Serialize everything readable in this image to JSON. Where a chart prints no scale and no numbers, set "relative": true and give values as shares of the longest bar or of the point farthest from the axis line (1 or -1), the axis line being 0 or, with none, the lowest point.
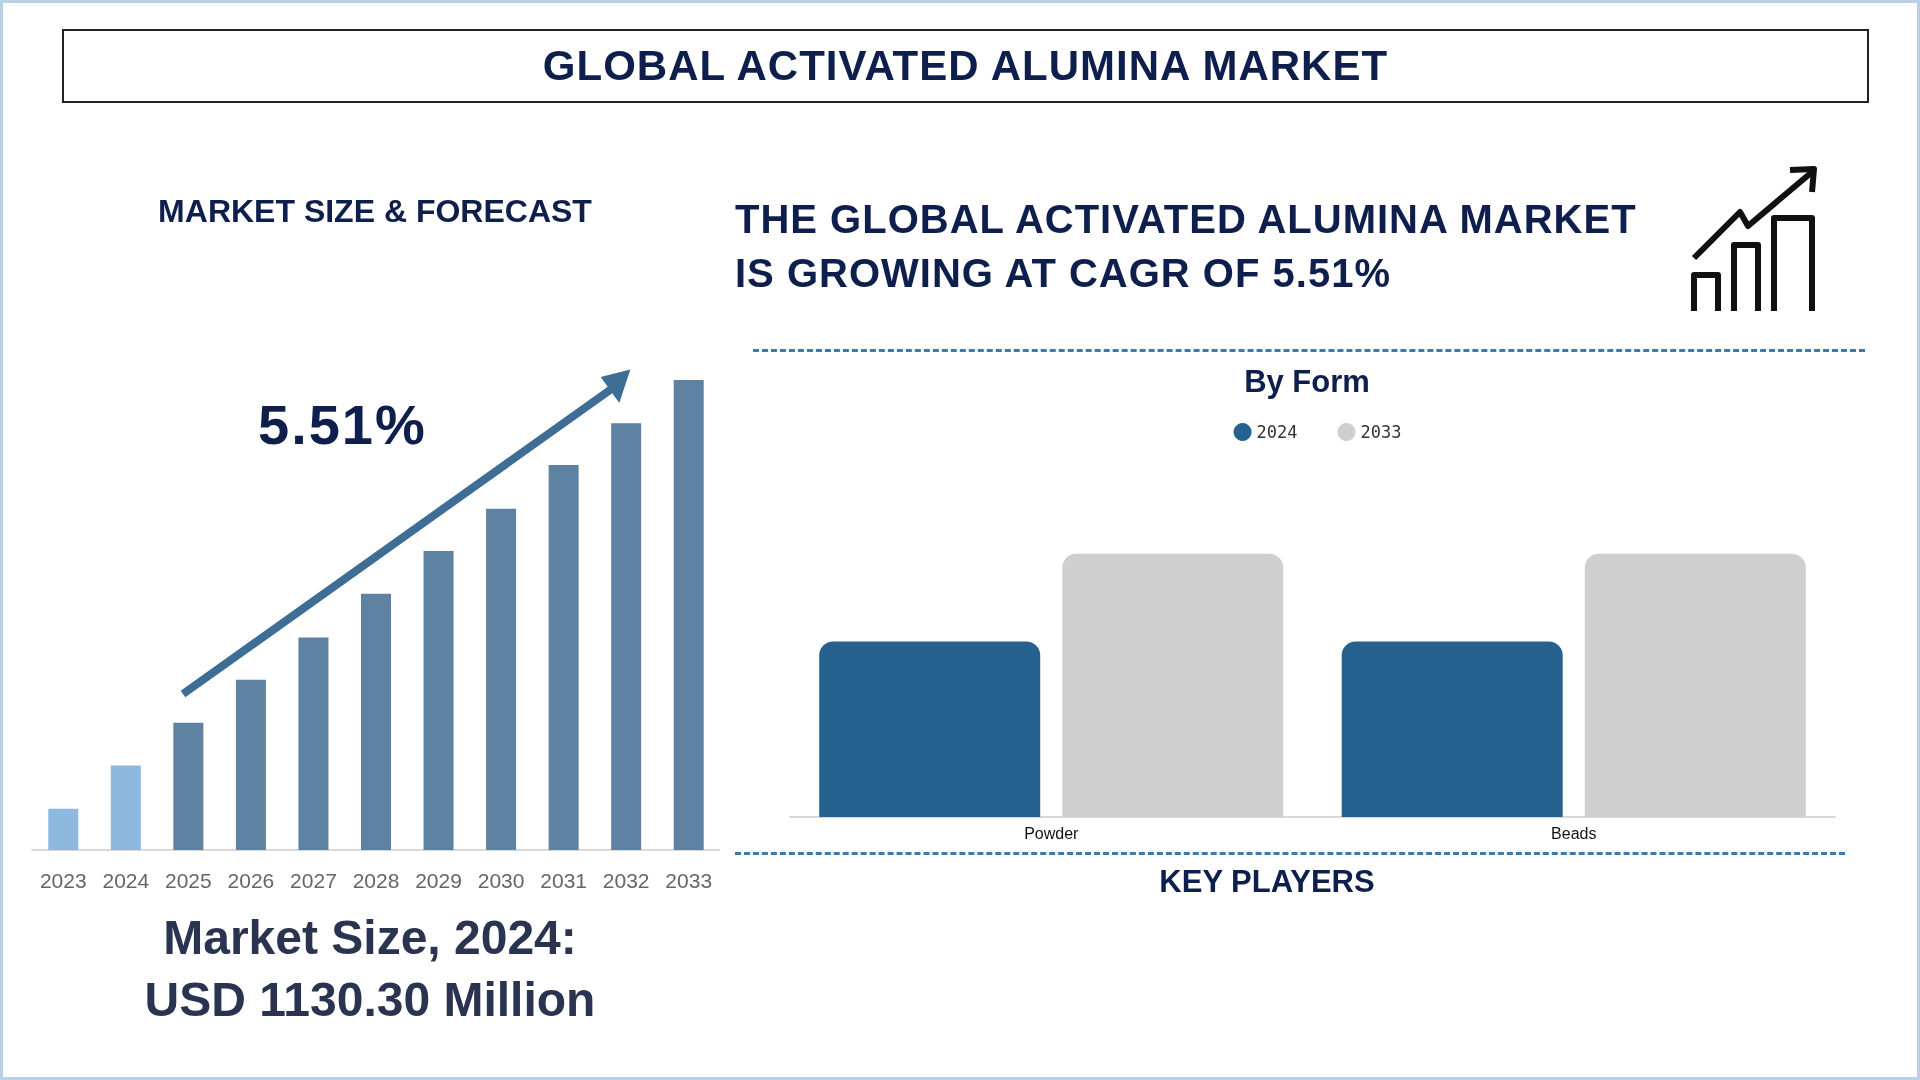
{
  "chart_data": [
    {
      "type": "bar",
      "title": "GLOBAL ACTIVATED ALUMINA MARKET",
      "subtitle": "MARKET SIZE & FORECAST",
      "categories": [
        "2023",
        "2024",
        "2025",
        "2026",
        "2027",
        "2028",
        "2029",
        "2030",
        "2031",
        "2032",
        "2033"
      ],
      "values": [
        0.088,
        0.18,
        0.271,
        0.362,
        0.452,
        0.545,
        0.636,
        0.726,
        0.819,
        0.908,
        1
      ],
      "colors": [
        "#8db8e0",
        "#8db8e0",
        "#5f82a3",
        "#5f82a3",
        "#5f82a3",
        "#5f82a3",
        "#5f82a3",
        "#5f82a3",
        "#5f82a3",
        "#5f82a3",
        "#5f82a3"
      ],
      "relative": true,
      "annotations": [
        "5.51%",
        "Market Size, 2024:",
        "USD 1130.30 Million"
      ]
    },
    {
      "type": "bar",
      "title": "By Form",
      "categories": [
        "Powder",
        "Beads"
      ],
      "series": [
        {
          "name": "2024",
          "color": "#276190",
          "values": [
            0.667,
            0.667
          ]
        },
        {
          "name": "2033",
          "color": "#cfcfcf",
          "values": [
            1,
            1
          ]
        }
      ],
      "relative": true,
      "legend": "top",
      "annotations": [
        "THE GLOBAL ACTIVATED ALUMINA MARKET IS GROWING AT CAGR OF 5.51%",
        "KEY PLAYERS"
      ]
    }
  ]
}
